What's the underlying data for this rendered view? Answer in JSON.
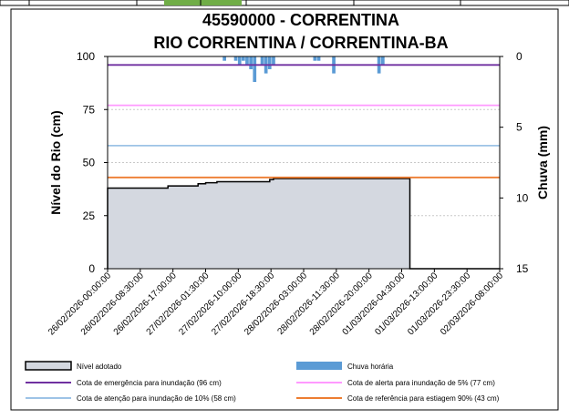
{
  "chart_data": {
    "type": "area",
    "title": "45590000 - CORRENTINA",
    "subtitle": "RIO CORRENTINA / CORRENTINA-BA",
    "ylabel": "Nível do Rio (cm)",
    "y2label": "Chuva (mm)",
    "ylim": [
      0,
      100
    ],
    "yticks": [
      0,
      25,
      50,
      75,
      100
    ],
    "y2lim": [
      15,
      0
    ],
    "y2ticks": [
      0,
      5,
      10,
      15
    ],
    "xlim": [
      "26/02/2026-00:00",
      "02/03/2026-08:00"
    ],
    "xticks": [
      "26/02/2026-00:00:00",
      "26/02/2026-08:30:00",
      "26/02/2026-17:00:00",
      "27/02/2026-01:30:00",
      "27/02/2026-10:00:00",
      "27/02/2026-18:30:00",
      "28/02/2026-03:00:00",
      "28/02/2026-11:30:00",
      "28/02/2026-20:00:00",
      "01/03/2026-04:30:00",
      "01/03/2026-13:00:00",
      "01/03/2026-23:30:00",
      "02/03/2026-08:00:00"
    ],
    "grid": true,
    "legend_position": "bottom",
    "series": [
      {
        "name": "Nível adotado",
        "kind": "area",
        "color": "#d4d8e0",
        "edge_color": "#000000",
        "x": [
          "26/02/2026-00:00",
          "26/02/2026-14:00",
          "26/02/2026-16:00",
          "26/02/2026-17:00",
          "27/02/2026-00:00",
          "27/02/2026-02:00",
          "27/02/2026-05:00",
          "27/02/2026-19:00",
          "27/02/2026-20:00",
          "01/03/2026-08:00",
          "01/03/2026-08:10",
          "02/03/2026-08:00"
        ],
        "y": [
          38,
          38,
          39,
          39,
          40,
          40.5,
          41,
          42,
          42.5,
          42.5,
          0,
          0
        ]
      },
      {
        "name": "Chuva horária",
        "kind": "bar",
        "color": "#5b9bd5",
        "x": [
          "27/02/2026-07:00",
          "27/02/2026-10:00",
          "27/02/2026-11:00",
          "27/02/2026-12:00",
          "27/02/2026-13:00",
          "27/02/2026-14:00",
          "27/02/2026-15:00",
          "27/02/2026-17:00",
          "27/02/2026-18:00",
          "27/02/2026-19:00",
          "27/02/2026-20:00",
          "28/02/2026-07:00",
          "28/02/2026-08:00",
          "28/02/2026-12:00",
          "01/03/2026-00:00",
          "01/03/2026-01:00"
        ],
        "y": [
          0.3,
          0.3,
          0.6,
          0.3,
          0.6,
          0.9,
          1.8,
          0.6,
          1.2,
          0.9,
          0.6,
          0.3,
          0.3,
          1.2,
          1.2,
          0.6
        ]
      },
      {
        "name": "Cota de emergência para inundação (96 cm)",
        "kind": "hline",
        "value": 96,
        "color": "#7030a0"
      },
      {
        "name": "Cota de alerta para inundação de 5% (77 cm)",
        "kind": "hline",
        "value": 77,
        "color": "#ff99ff"
      },
      {
        "name": "Cota de atenção para inundação de 10% (58 cm)",
        "kind": "hline",
        "value": 58,
        "color": "#9dc3e6"
      },
      {
        "name": "Cota de referência para estiagem 90% (43 cm)",
        "kind": "hline",
        "value": 43,
        "color": "#ed7d31"
      }
    ],
    "top_table": {
      "cells": [
        "",
        "",
        "",
        "",
        "",
        "",
        ""
      ],
      "highlight_color": "#70ad47"
    }
  }
}
